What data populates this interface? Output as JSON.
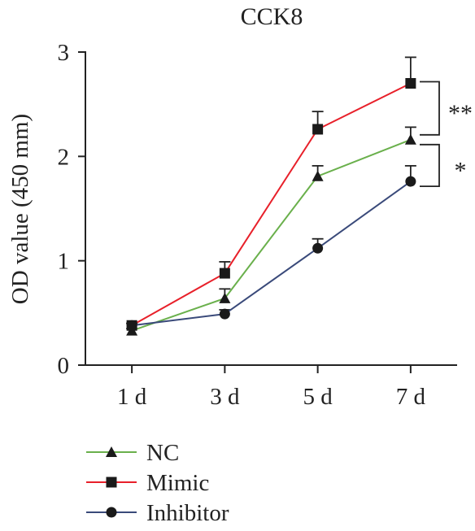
{
  "chart_data": {
    "type": "line",
    "title": "CCK8",
    "xlabel": "",
    "ylabel": "OD value (450 mm)",
    "categories": [
      "1 d",
      "3 d",
      "5 d",
      "7 d"
    ],
    "ylim": [
      0,
      3
    ],
    "yticks": [
      0,
      1,
      2,
      3
    ],
    "legend_position": "bottom-left",
    "grid": false,
    "series": [
      {
        "name": "NC",
        "marker": "triangle",
        "color": "#6ab04c",
        "values": [
          0.33,
          0.64,
          1.81,
          2.16
        ],
        "errors": [
          0.02,
          0.09,
          0.1,
          0.12
        ]
      },
      {
        "name": "Mimic",
        "marker": "square",
        "color": "#e8202a",
        "values": [
          0.38,
          0.88,
          2.26,
          2.7
        ],
        "errors": [
          0.02,
          0.11,
          0.17,
          0.25
        ]
      },
      {
        "name": "Inhibitor",
        "marker": "circle",
        "color": "#3a4a7a",
        "values": [
          0.38,
          0.49,
          1.12,
          1.76
        ],
        "errors": [
          0.02,
          0.04,
          0.09,
          0.15
        ]
      }
    ],
    "annotations": [
      {
        "label": "**",
        "between": [
          "Mimic",
          "NC"
        ],
        "at": "7 d"
      },
      {
        "label": "*",
        "between": [
          "NC",
          "Inhibitor"
        ],
        "at": "7 d"
      }
    ]
  }
}
